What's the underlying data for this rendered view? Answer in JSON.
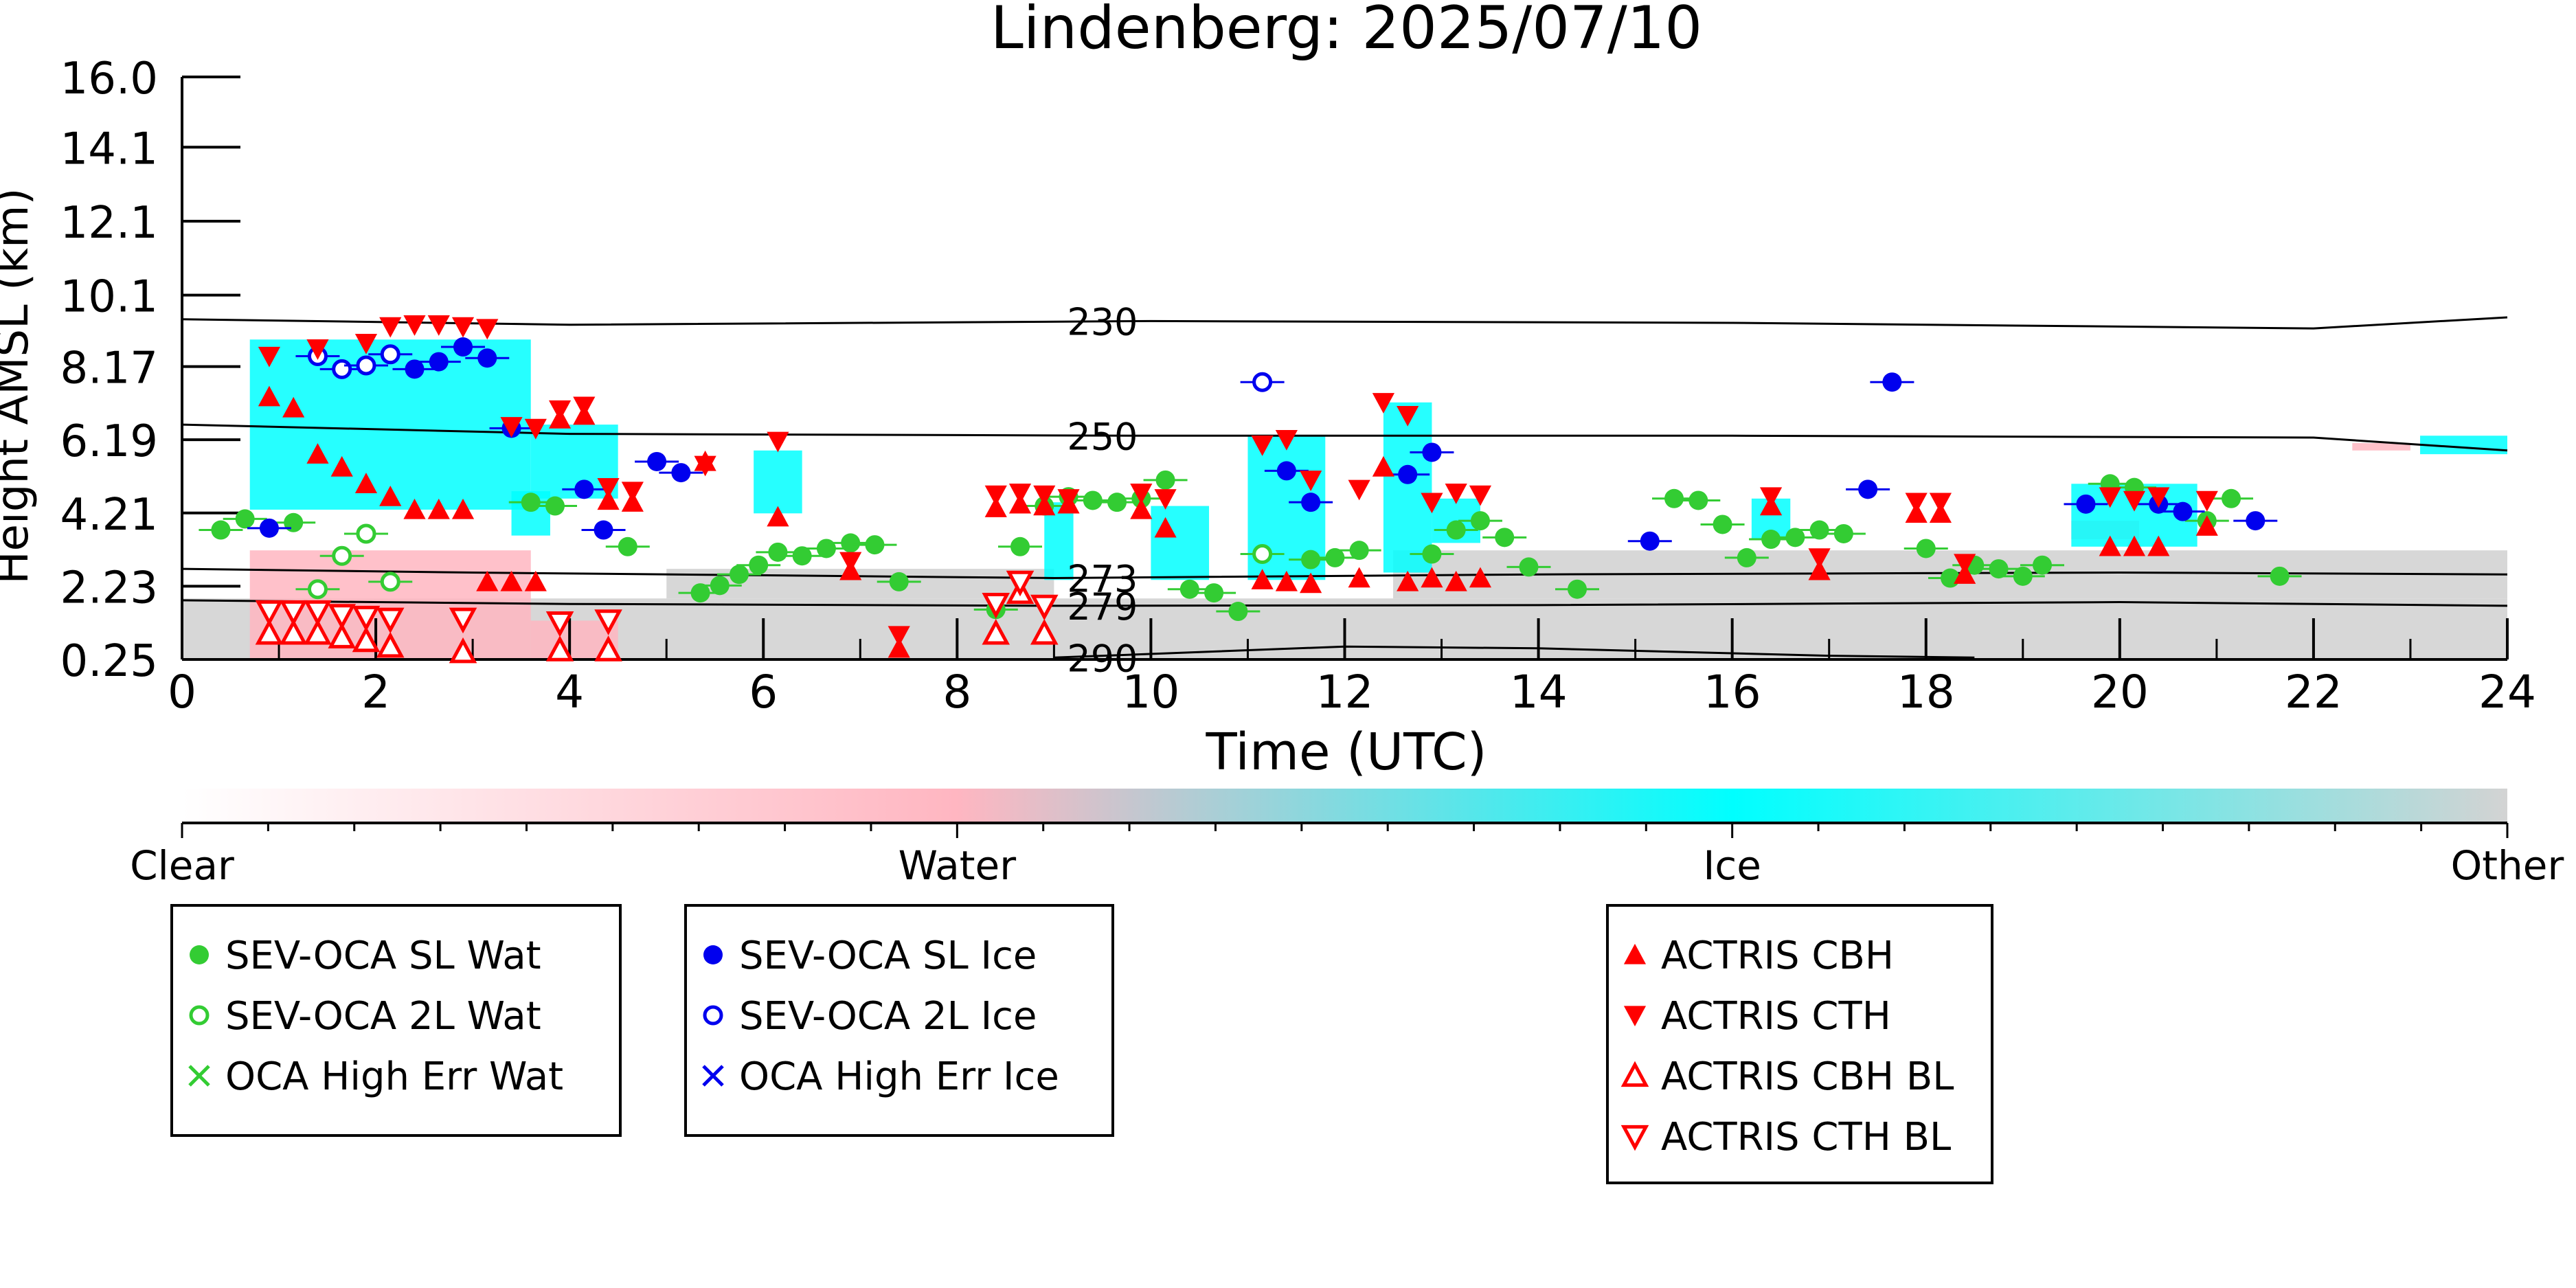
{
  "chart_data": {
    "type": "scatter",
    "title": "Lindenberg: 2025/07/10",
    "xlabel": "Time (UTC)",
    "ylabel": "Height AMSL (km)",
    "xlim": [
      0,
      24
    ],
    "ylim": [
      0.25,
      16.0
    ],
    "x_ticks": [
      "0",
      "2",
      "4",
      "6",
      "8",
      "10",
      "12",
      "14",
      "16",
      "18",
      "20",
      "22",
      "24"
    ],
    "y_ticks": [
      "0.25",
      "2.23",
      "4.21",
      "6.19",
      "8.17",
      "10.1",
      "12.1",
      "14.1",
      "16.0"
    ],
    "colorbar": {
      "labels": [
        "Clear",
        "Water",
        "Ice",
        "Other"
      ],
      "colors": [
        "#ffffff",
        "#ffb6c1",
        "#00ffff",
        "#d3d3d3"
      ]
    },
    "background": {
      "ice_color": "#00ffff",
      "water_color": "#ffb6c1",
      "other_color": "#d3d3d3",
      "ice_regions": [
        {
          "x": [
            0.7,
            3.6
          ],
          "y": [
            4.3,
            8.9
          ]
        },
        {
          "x": [
            3.6,
            4.5
          ],
          "y": [
            4.6,
            6.6
          ]
        },
        {
          "x": [
            3.4,
            3.8
          ],
          "y": [
            3.6,
            4.8
          ]
        },
        {
          "x": [
            5.9,
            6.4
          ],
          "y": [
            4.2,
            5.9
          ]
        },
        {
          "x": [
            8.9,
            9.2
          ],
          "y": [
            2.4,
            4.5
          ]
        },
        {
          "x": [
            10.0,
            10.6
          ],
          "y": [
            2.4,
            4.4
          ]
        },
        {
          "x": [
            11.0,
            11.8
          ],
          "y": [
            2.4,
            6.3
          ]
        },
        {
          "x": [
            12.4,
            12.9
          ],
          "y": [
            2.6,
            7.2
          ]
        },
        {
          "x": [
            12.9,
            13.4
          ],
          "y": [
            3.4,
            4.6
          ]
        },
        {
          "x": [
            16.2,
            16.6
          ],
          "y": [
            3.5,
            4.6
          ]
        },
        {
          "x": [
            19.5,
            20.8
          ],
          "y": [
            3.3,
            5.0
          ]
        },
        {
          "x": [
            23.1,
            24.0
          ],
          "y": [
            5.8,
            6.3
          ]
        }
      ],
      "water_regions": [
        {
          "x": [
            0.7,
            3.6
          ],
          "y": [
            0.25,
            3.2
          ]
        },
        {
          "x": [
            3.6,
            4.5
          ],
          "y": [
            0.25,
            1.3
          ]
        },
        {
          "x": [
            19.5,
            20.2
          ],
          "y": [
            3.5,
            4.0
          ]
        },
        {
          "x": [
            22.4,
            23.0
          ],
          "y": [
            5.9,
            6.1
          ]
        }
      ],
      "other_regions": [
        {
          "x": [
            0.0,
            24.0
          ],
          "y": [
            0.25,
            1.9
          ]
        },
        {
          "x": [
            5.0,
            9.0
          ],
          "y": [
            1.9,
            2.7
          ]
        },
        {
          "x": [
            12.5,
            24.0
          ],
          "y": [
            1.9,
            3.2
          ]
        }
      ]
    },
    "isotherms": [
      {
        "label": "230",
        "points": [
          [
            0,
            9.45
          ],
          [
            4,
            9.3
          ],
          [
            10,
            9.4
          ],
          [
            16,
            9.35
          ],
          [
            22,
            9.2
          ],
          [
            24,
            9.5
          ]
        ]
      },
      {
        "label": "250",
        "points": [
          [
            0,
            6.6
          ],
          [
            4,
            6.35
          ],
          [
            10,
            6.3
          ],
          [
            16,
            6.3
          ],
          [
            22,
            6.25
          ],
          [
            24,
            5.9
          ]
        ]
      },
      {
        "label": "273",
        "points": [
          [
            0,
            2.7
          ],
          [
            3,
            2.6
          ],
          [
            9,
            2.45
          ],
          [
            14,
            2.55
          ],
          [
            20,
            2.6
          ],
          [
            24,
            2.55
          ]
        ]
      },
      {
        "label": "279",
        "points": [
          [
            0,
            1.85
          ],
          [
            4,
            1.75
          ],
          [
            9,
            1.7
          ],
          [
            14,
            1.72
          ],
          [
            20,
            1.8
          ],
          [
            24,
            1.7
          ]
        ]
      },
      {
        "label": "290",
        "points": [
          [
            9,
            0.3
          ],
          [
            12,
            0.6
          ],
          [
            14,
            0.55
          ],
          [
            17,
            0.35
          ],
          [
            18.5,
            0.3
          ]
        ]
      }
    ],
    "series": [
      {
        "name": "SEV-OCA SL Wat",
        "color": "#33cc33",
        "marker": "filled-circle",
        "points": [
          [
            0.4,
            3.75
          ],
          [
            0.65,
            4.05
          ],
          [
            1.15,
            3.95
          ],
          [
            3.6,
            4.5
          ],
          [
            3.85,
            4.4
          ],
          [
            4.6,
            3.3
          ],
          [
            5.35,
            2.05
          ],
          [
            5.55,
            2.25
          ],
          [
            5.75,
            2.55
          ],
          [
            5.95,
            2.8
          ],
          [
            6.15,
            3.15
          ],
          [
            6.4,
            3.05
          ],
          [
            6.65,
            3.25
          ],
          [
            6.9,
            3.4
          ],
          [
            7.15,
            3.35
          ],
          [
            7.4,
            2.35
          ],
          [
            8.4,
            1.6
          ],
          [
            8.65,
            3.3
          ],
          [
            8.9,
            4.4
          ],
          [
            9.15,
            4.65
          ],
          [
            9.4,
            4.55
          ],
          [
            9.65,
            4.5
          ],
          [
            9.9,
            4.6
          ],
          [
            10.15,
            5.1
          ],
          [
            10.4,
            2.15
          ],
          [
            10.65,
            2.05
          ],
          [
            10.9,
            1.55
          ],
          [
            11.65,
            2.95
          ],
          [
            11.9,
            3.0
          ],
          [
            12.15,
            3.2
          ],
          [
            12.9,
            3.1
          ],
          [
            13.15,
            3.75
          ],
          [
            13.4,
            4.0
          ],
          [
            13.65,
            3.55
          ],
          [
            13.9,
            2.75
          ],
          [
            14.4,
            2.15
          ],
          [
            15.4,
            4.6
          ],
          [
            15.65,
            4.55
          ],
          [
            15.9,
            3.9
          ],
          [
            16.15,
            3.0
          ],
          [
            16.4,
            3.5
          ],
          [
            16.65,
            3.55
          ],
          [
            16.9,
            3.75
          ],
          [
            17.15,
            3.65
          ],
          [
            18.0,
            3.25
          ],
          [
            18.25,
            2.45
          ],
          [
            18.5,
            2.8
          ],
          [
            18.75,
            2.7
          ],
          [
            19.0,
            2.5
          ],
          [
            19.2,
            2.8
          ],
          [
            19.9,
            5.0
          ],
          [
            20.15,
            4.9
          ],
          [
            20.9,
            4.0
          ],
          [
            21.15,
            4.6
          ],
          [
            21.65,
            2.5
          ]
        ]
      },
      {
        "name": "SEV-OCA 2L Wat",
        "color": "#33cc33",
        "marker": "open-circle",
        "points": [
          [
            1.4,
            2.15
          ],
          [
            1.65,
            3.05
          ],
          [
            1.9,
            3.65
          ],
          [
            2.15,
            2.35
          ],
          [
            11.15,
            3.1
          ]
        ]
      },
      {
        "name": "OCA High Err Wat",
        "color": "#33cc33",
        "marker": "x",
        "points": []
      },
      {
        "name": "SEV-OCA SL Ice",
        "color": "#0000ee",
        "marker": "filled-circle",
        "points": [
          [
            0.9,
            3.8
          ],
          [
            2.4,
            8.1
          ],
          [
            2.65,
            8.3
          ],
          [
            2.9,
            8.7
          ],
          [
            3.15,
            8.4
          ],
          [
            3.4,
            6.5
          ],
          [
            4.15,
            4.85
          ],
          [
            4.35,
            3.75
          ],
          [
            4.9,
            5.6
          ],
          [
            5.15,
            5.3
          ],
          [
            11.4,
            5.35
          ],
          [
            11.65,
            4.5
          ],
          [
            12.65,
            5.25
          ],
          [
            12.9,
            5.85
          ],
          [
            15.15,
            3.45
          ],
          [
            17.4,
            4.85
          ],
          [
            17.65,
            7.75
          ],
          [
            19.65,
            4.45
          ],
          [
            20.4,
            4.45
          ],
          [
            20.65,
            4.25
          ],
          [
            21.4,
            4.0
          ]
        ]
      },
      {
        "name": "SEV-OCA 2L Ice",
        "color": "#0000ee",
        "marker": "open-circle",
        "points": [
          [
            1.4,
            8.45
          ],
          [
            1.65,
            8.1
          ],
          [
            1.9,
            8.2
          ],
          [
            2.15,
            8.5
          ],
          [
            11.15,
            7.75
          ]
        ]
      },
      {
        "name": "OCA High Err Ice",
        "color": "#0000ee",
        "marker": "x",
        "points": []
      },
      {
        "name": "ACTRIS CBH",
        "color": "#ff0000",
        "marker": "filled-triangle-up",
        "points": [
          [
            0.9,
            7.35
          ],
          [
            1.15,
            7.05
          ],
          [
            1.4,
            5.8
          ],
          [
            1.65,
            5.45
          ],
          [
            1.9,
            5.0
          ],
          [
            2.15,
            4.65
          ],
          [
            2.4,
            4.3
          ],
          [
            2.65,
            4.3
          ],
          [
            2.9,
            4.3
          ],
          [
            3.15,
            2.35
          ],
          [
            3.4,
            2.35
          ],
          [
            3.65,
            2.35
          ],
          [
            3.9,
            6.75
          ],
          [
            4.15,
            6.85
          ],
          [
            4.4,
            4.55
          ],
          [
            4.65,
            4.5
          ],
          [
            5.4,
            5.6
          ],
          [
            6.15,
            4.1
          ],
          [
            6.9,
            2.65
          ],
          [
            7.4,
            0.55
          ],
          [
            8.4,
            4.35
          ],
          [
            8.65,
            4.45
          ],
          [
            8.9,
            4.4
          ],
          [
            9.15,
            4.45
          ],
          [
            9.9,
            4.3
          ],
          [
            10.15,
            3.8
          ],
          [
            11.15,
            2.4
          ],
          [
            11.4,
            2.35
          ],
          [
            11.65,
            2.3
          ],
          [
            12.15,
            2.45
          ],
          [
            12.4,
            5.45
          ],
          [
            12.65,
            2.35
          ],
          [
            12.9,
            2.45
          ],
          [
            13.15,
            2.35
          ],
          [
            13.4,
            2.45
          ],
          [
            16.4,
            4.4
          ],
          [
            16.9,
            2.65
          ],
          [
            17.9,
            4.2
          ],
          [
            18.15,
            4.2
          ],
          [
            18.4,
            2.55
          ],
          [
            19.9,
            3.3
          ],
          [
            20.15,
            3.3
          ],
          [
            20.4,
            3.3
          ],
          [
            20.9,
            3.85
          ]
        ]
      },
      {
        "name": "ACTRIS CTH",
        "color": "#ff0000",
        "marker": "filled-triangle-down",
        "points": [
          [
            0.9,
            8.45
          ],
          [
            1.4,
            8.65
          ],
          [
            1.9,
            8.8
          ],
          [
            2.15,
            9.25
          ],
          [
            2.4,
            9.3
          ],
          [
            2.65,
            9.3
          ],
          [
            2.9,
            9.25
          ],
          [
            3.15,
            9.2
          ],
          [
            3.4,
            6.55
          ],
          [
            3.65,
            6.5
          ],
          [
            3.9,
            7.0
          ],
          [
            4.15,
            7.1
          ],
          [
            4.4,
            4.9
          ],
          [
            4.65,
            4.8
          ],
          [
            5.4,
            5.5
          ],
          [
            6.15,
            6.15
          ],
          [
            6.9,
            2.9
          ],
          [
            7.4,
            0.9
          ],
          [
            8.4,
            4.7
          ],
          [
            8.65,
            4.75
          ],
          [
            8.9,
            4.7
          ],
          [
            9.15,
            4.6
          ],
          [
            9.9,
            4.75
          ],
          [
            10.15,
            4.6
          ],
          [
            11.15,
            6.05
          ],
          [
            11.4,
            6.2
          ],
          [
            11.65,
            5.1
          ],
          [
            12.15,
            4.85
          ],
          [
            12.4,
            7.2
          ],
          [
            12.65,
            6.85
          ],
          [
            12.9,
            4.5
          ],
          [
            13.15,
            4.75
          ],
          [
            13.4,
            4.7
          ],
          [
            16.4,
            4.65
          ],
          [
            16.9,
            3.0
          ],
          [
            17.9,
            4.5
          ],
          [
            18.15,
            4.5
          ],
          [
            18.4,
            2.85
          ],
          [
            19.9,
            4.65
          ],
          [
            20.15,
            4.55
          ],
          [
            20.4,
            4.65
          ],
          [
            20.9,
            4.55
          ]
        ]
      },
      {
        "name": "ACTRIS CBH BL",
        "color": "#ff0000",
        "marker": "open-triangle-up",
        "points": [
          [
            0.9,
            0.95
          ],
          [
            1.15,
            0.95
          ],
          [
            1.4,
            0.95
          ],
          [
            1.65,
            0.85
          ],
          [
            1.9,
            0.75
          ],
          [
            2.15,
            0.6
          ],
          [
            2.9,
            0.45
          ],
          [
            3.9,
            0.5
          ],
          [
            4.4,
            0.5
          ],
          [
            8.4,
            0.95
          ],
          [
            8.65,
            2.05
          ],
          [
            8.9,
            0.95
          ]
        ]
      },
      {
        "name": "ACTRIS CTH BL",
        "color": "#ff0000",
        "marker": "open-triangle-down",
        "points": [
          [
            0.9,
            1.55
          ],
          [
            1.15,
            1.55
          ],
          [
            1.4,
            1.55
          ],
          [
            1.65,
            1.45
          ],
          [
            1.9,
            1.4
          ],
          [
            2.15,
            1.35
          ],
          [
            2.9,
            1.35
          ],
          [
            3.9,
            1.25
          ],
          [
            4.4,
            1.3
          ],
          [
            8.4,
            1.75
          ],
          [
            8.65,
            2.35
          ],
          [
            8.9,
            1.7
          ]
        ]
      }
    ],
    "legend_boxes": [
      {
        "series": [
          0,
          1,
          2
        ]
      },
      {
        "series": [
          3,
          4,
          5
        ]
      },
      {
        "series": [
          6,
          7,
          8,
          9
        ]
      }
    ]
  }
}
